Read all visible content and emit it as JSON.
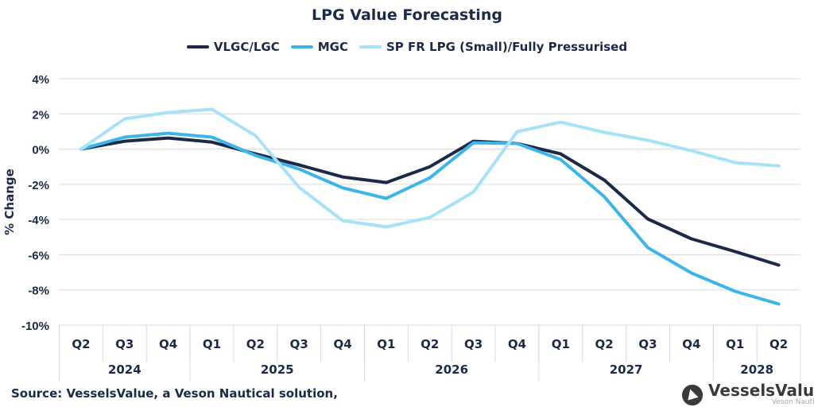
{
  "chart_data": {
    "type": "line",
    "title": "LPG Value Forecasting",
    "ylabel": "% Change",
    "xlabel": "",
    "ylim": [
      -10,
      4
    ],
    "yticks": [
      4,
      2,
      0,
      -2,
      -4,
      -6,
      -8,
      -10
    ],
    "ytick_labels": [
      "4%",
      "2%",
      "0%",
      "-2%",
      "-4%",
      "-6%",
      "-8%",
      "-10%"
    ],
    "grid": true,
    "legend_placement": "top",
    "categories": [
      "Q2",
      "Q3",
      "Q4",
      "Q1",
      "Q2",
      "Q3",
      "Q4",
      "Q1",
      "Q2",
      "Q3",
      "Q4",
      "Q1",
      "Q2",
      "Q3",
      "Q4",
      "Q1",
      "Q2"
    ],
    "year_groups": [
      {
        "label": "2024",
        "count": 3
      },
      {
        "label": "2025",
        "count": 4
      },
      {
        "label": "2026",
        "count": 4
      },
      {
        "label": "2027",
        "count": 4
      },
      {
        "label": "2028",
        "count": 2
      }
    ],
    "series": [
      {
        "name": "VLGC/LGC",
        "color": "#1c2a47",
        "values": [
          0,
          0.45,
          0.63,
          0.4,
          -0.27,
          -0.9,
          -1.58,
          -1.9,
          -1.0,
          0.45,
          0.32,
          -0.27,
          -1.76,
          -3.97,
          -5.1,
          -5.82,
          -6.59
        ]
      },
      {
        "name": "MGC",
        "color": "#3db5e8",
        "values": [
          0,
          0.68,
          0.9,
          0.68,
          -0.36,
          -1.13,
          -2.2,
          -2.8,
          -1.63,
          0.36,
          0.32,
          -0.59,
          -2.7,
          -5.6,
          -7.04,
          -8.08,
          -8.8
        ]
      },
      {
        "name": "SP FR LPG (Small)/Fully Pressurised",
        "color": "#a8e2f8",
        "values": [
          0,
          1.72,
          2.08,
          2.26,
          0.77,
          -2.17,
          -4.06,
          -4.42,
          -3.88,
          -2.44,
          0.99,
          1.53,
          0.95,
          0.5,
          -0.09,
          -0.77,
          -0.95
        ]
      }
    ]
  },
  "source": "Source: VesselsValue, a Veson Nautical solution,",
  "logo": {
    "name": "VesselsValue",
    "sub": "Veson Nautical"
  }
}
